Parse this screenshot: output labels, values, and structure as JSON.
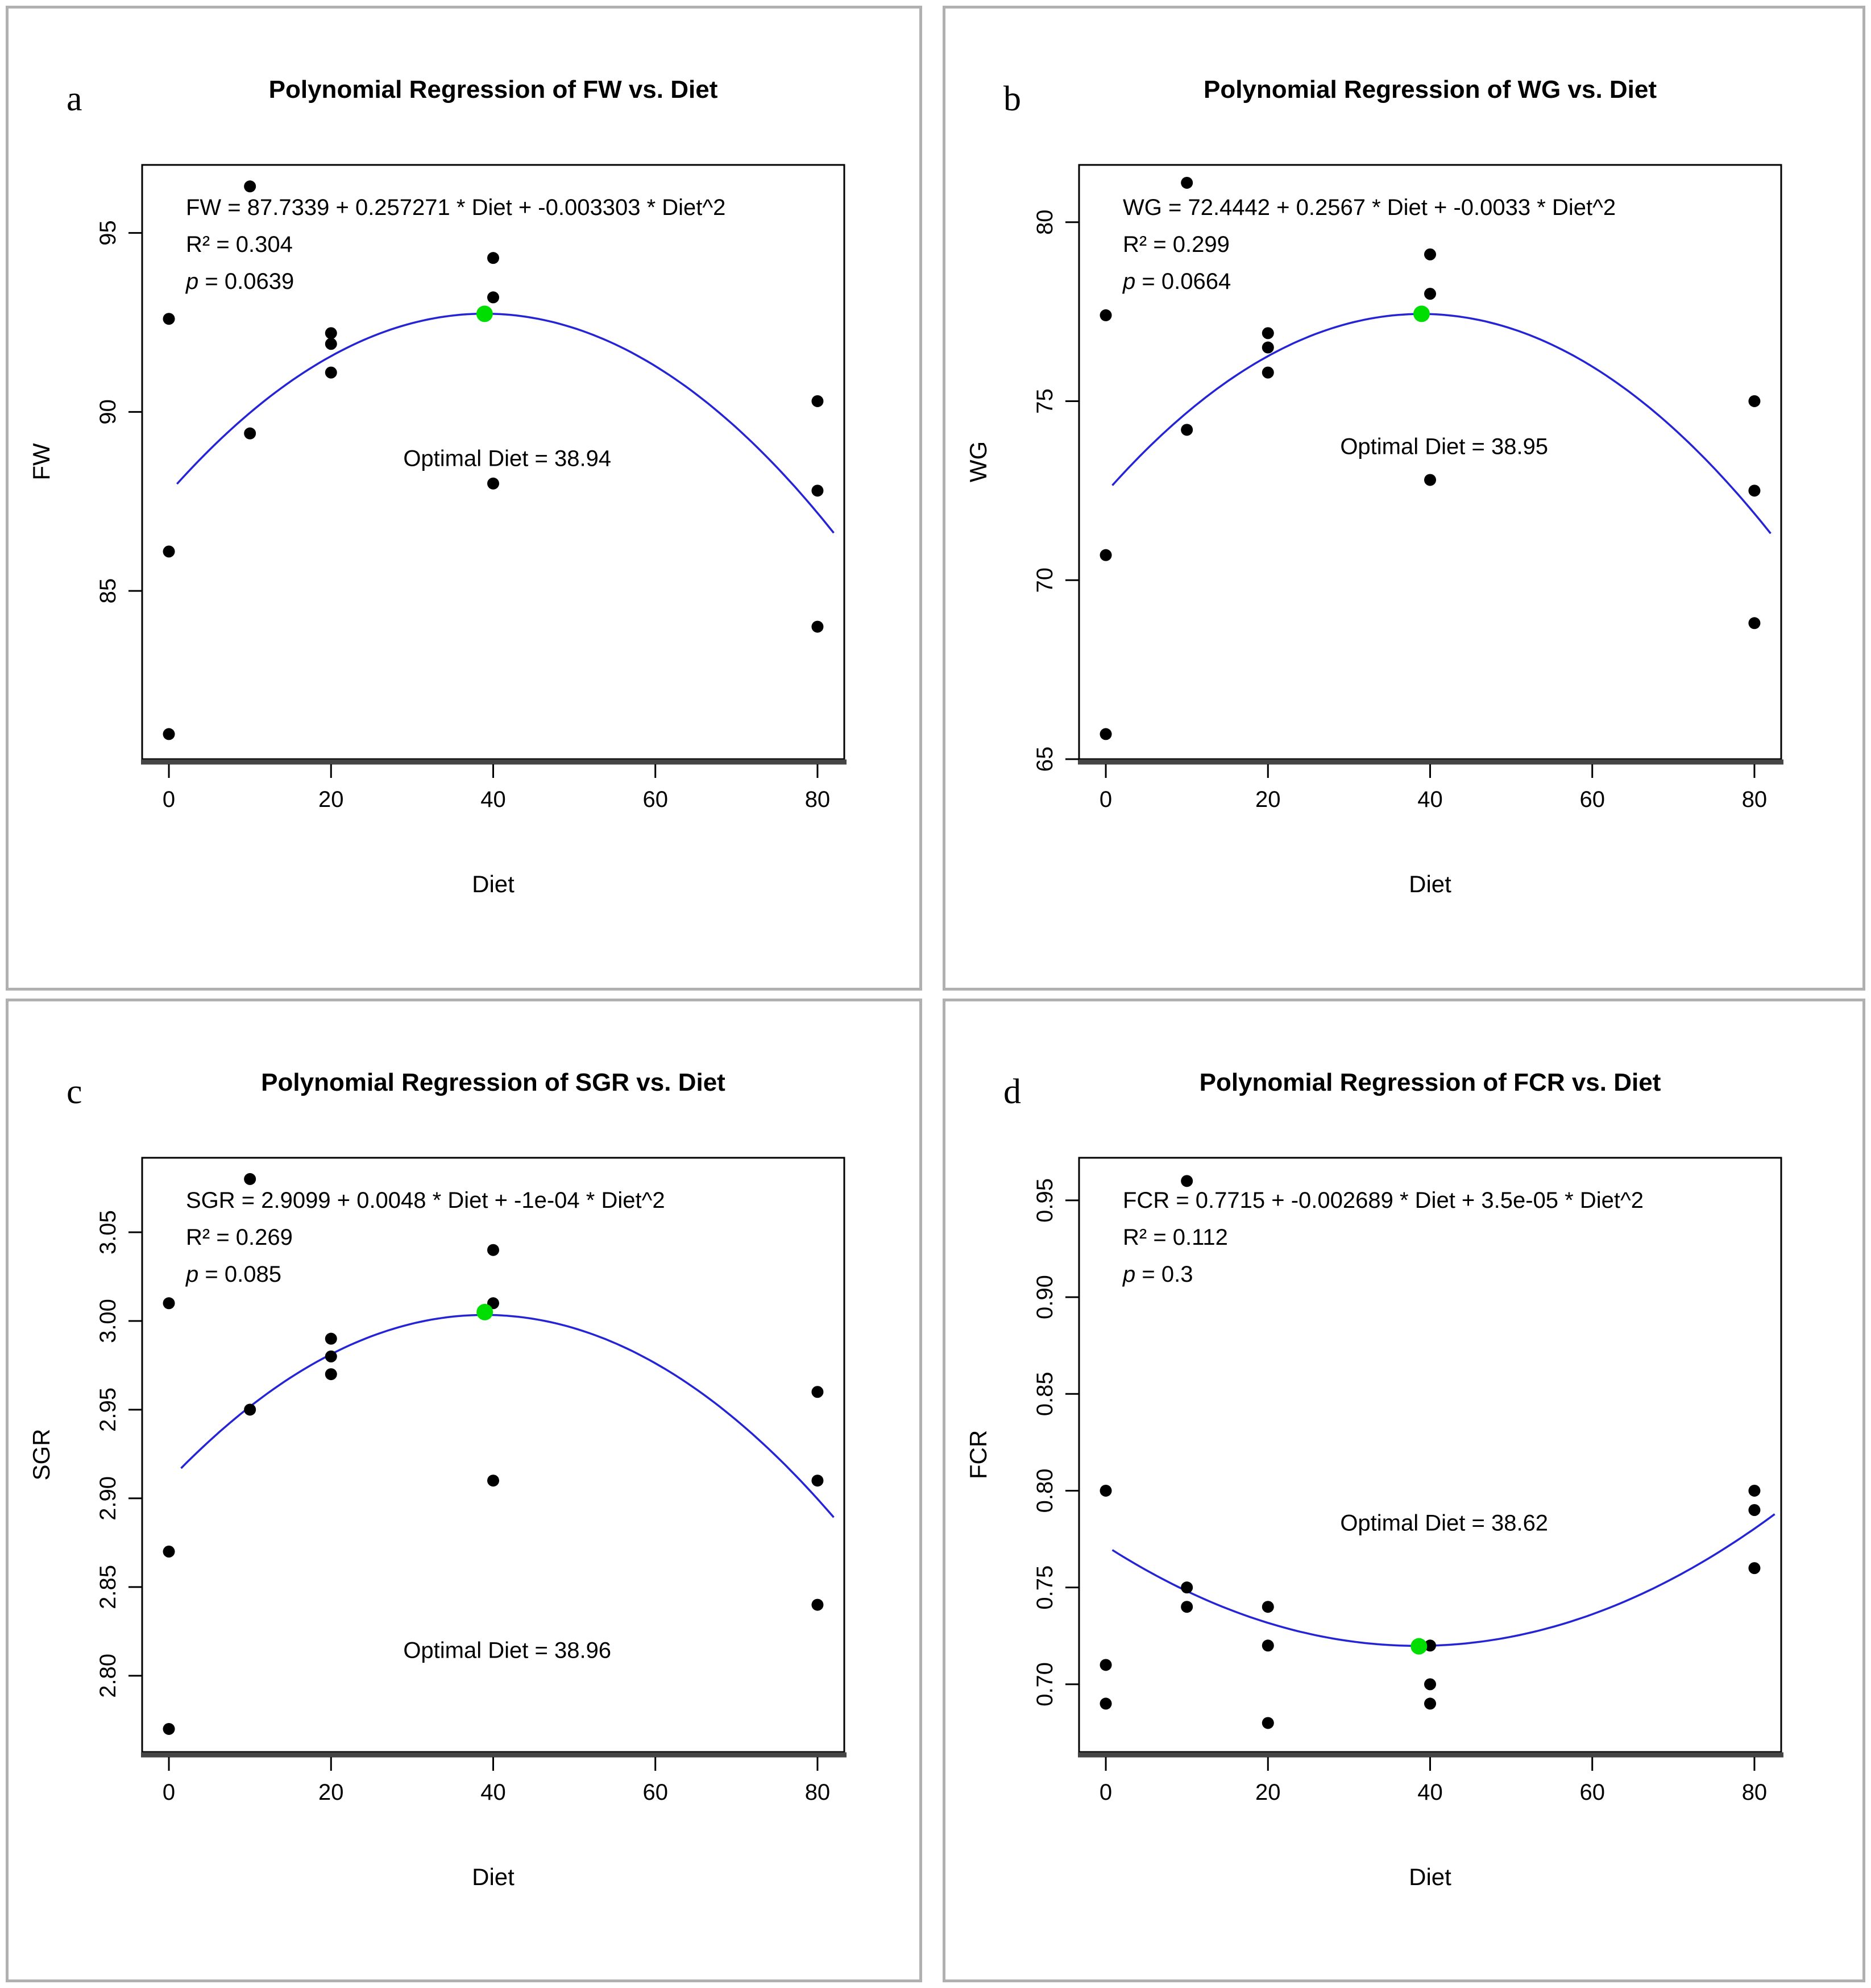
{
  "page": {
    "background": "#ffffff",
    "panel_border": "#b0b0b0"
  },
  "colors": {
    "curve": "#2424d6",
    "point": "#000000",
    "optimum": "#00dd00",
    "axis": "#000000",
    "axis_shadow": "#454545"
  },
  "chart_data": [
    {
      "type": "scatter",
      "letter": "a",
      "title": "Polynomial Regression of FW vs. Diet",
      "equation": "FW = 87.7339 + 0.257271 * Diet + -0.003303 * Diet^2",
      "r2": "R² = 0.304",
      "p_label": "p",
      "p_value": "= 0.0639",
      "optimal_label": "Optimal Diet = 38.94",
      "xlabel": "Diet",
      "ylabel": "FW",
      "xticks": [
        0,
        20,
        40,
        60,
        80
      ],
      "xtick_labels": [
        "0",
        "20",
        "40",
        "60",
        "80"
      ],
      "yticks": [
        85,
        90,
        95
      ],
      "ytick_labels": [
        "85",
        "90",
        "95"
      ],
      "xlim": [
        -3.3,
        83.3
      ],
      "ylim": [
        80.3,
        96.9
      ],
      "grid": false,
      "points": [
        [
          0,
          92.6
        ],
        [
          0,
          86.1
        ],
        [
          0,
          81.0
        ],
        [
          10,
          96.3
        ],
        [
          10,
          89.4
        ],
        [
          20,
          92.2
        ],
        [
          20,
          91.9
        ],
        [
          20,
          91.1
        ],
        [
          40,
          94.3
        ],
        [
          40,
          93.2
        ],
        [
          40,
          88.0
        ],
        [
          80,
          90.3
        ],
        [
          80,
          87.8
        ],
        [
          80,
          84.0
        ]
      ],
      "optimum": [
        38.94,
        92.74
      ],
      "curve": {
        "b0": 87.7339,
        "b1": 0.257271,
        "b2": -0.003303,
        "x_range": [
          1.0,
          82.0
        ]
      },
      "optimal_pos": {
        "x": 0.52,
        "y": 0.495
      }
    },
    {
      "type": "scatter",
      "letter": "b",
      "title": "Polynomial Regression of WG vs. Diet",
      "equation": "WG = 72.4442 + 0.2567 * Diet + -0.0033 * Diet^2",
      "r2": "R² = 0.299",
      "p_label": "p",
      "p_value": "= 0.0664",
      "optimal_label": "Optimal Diet = 38.95",
      "xlabel": "Diet",
      "ylabel": "WG",
      "xticks": [
        0,
        20,
        40,
        60,
        80
      ],
      "xtick_labels": [
        "0",
        "20",
        "40",
        "60",
        "80"
      ],
      "yticks": [
        65,
        70,
        75,
        80
      ],
      "ytick_labels": [
        "65",
        "70",
        "75",
        "80"
      ],
      "xlim": [
        -3.3,
        83.3
      ],
      "ylim": [
        65.0,
        81.6
      ],
      "grid": false,
      "points": [
        [
          0,
          77.4
        ],
        [
          0,
          70.7
        ],
        [
          0,
          65.7
        ],
        [
          10,
          81.1
        ],
        [
          10,
          74.2
        ],
        [
          20,
          76.9
        ],
        [
          20,
          76.5
        ],
        [
          20,
          75.8
        ],
        [
          40,
          79.1
        ],
        [
          40,
          78.0
        ],
        [
          40,
          72.8
        ],
        [
          80,
          75.0
        ],
        [
          80,
          72.5
        ],
        [
          80,
          68.8
        ]
      ],
      "optimum": [
        38.95,
        77.44
      ],
      "curve": {
        "b0": 72.4442,
        "b1": 0.2567,
        "b2": -0.0033,
        "x_range": [
          0.8,
          82.0
        ]
      },
      "optimal_pos": {
        "x": 0.52,
        "y": 0.475
      }
    },
    {
      "type": "scatter",
      "letter": "c",
      "title": "Polynomial Regression of SGR vs. Diet",
      "equation": "SGR = 2.9099 + 0.0048 * Diet + -1e-04 * Diet^2",
      "r2": "R² = 0.269",
      "p_label": "p",
      "p_value": "= 0.085",
      "optimal_label": "Optimal Diet = 38.96",
      "xlabel": "Diet",
      "ylabel": "SGR",
      "xticks": [
        0,
        20,
        40,
        60,
        80
      ],
      "xtick_labels": [
        "0",
        "20",
        "40",
        "60",
        "80"
      ],
      "yticks": [
        2.8,
        2.85,
        2.9,
        2.95,
        3.0,
        3.05
      ],
      "ytick_labels": [
        "2.80",
        "2.85",
        "2.90",
        "2.95",
        "3.00",
        "3.05"
      ],
      "xlim": [
        -3.3,
        83.3
      ],
      "ylim": [
        2.757,
        3.092
      ],
      "grid": false,
      "points": [
        [
          0,
          3.01
        ],
        [
          0,
          2.87
        ],
        [
          0,
          2.77
        ],
        [
          10,
          3.08
        ],
        [
          10,
          2.95
        ],
        [
          20,
          2.99
        ],
        [
          20,
          2.98
        ],
        [
          20,
          2.97
        ],
        [
          40,
          3.04
        ],
        [
          40,
          3.01
        ],
        [
          40,
          2.91
        ],
        [
          80,
          2.96
        ],
        [
          80,
          2.91
        ],
        [
          80,
          2.84
        ]
      ],
      "optimum": [
        38.96,
        3.005
      ],
      "curve": {
        "b0": 2.9099,
        "b1": 0.0048,
        "b2": -6.16e-05,
        "x_range": [
          1.5,
          82.0
        ]
      },
      "optimal_pos": {
        "x": 0.52,
        "y": 0.83
      }
    },
    {
      "type": "scatter",
      "letter": "d",
      "title": "Polynomial Regression of FCR vs. Diet",
      "equation": "FCR = 0.7715 + -0.002689 * Diet + 3.5e-05 * Diet^2",
      "r2": "R² = 0.112",
      "p_label": "p",
      "p_value": "= 0.3",
      "optimal_label": "Optimal Diet = 38.62",
      "xlabel": "Diet",
      "ylabel": "FCR",
      "xticks": [
        0,
        20,
        40,
        60,
        80
      ],
      "xtick_labels": [
        "0",
        "20",
        "40",
        "60",
        "80"
      ],
      "yticks": [
        0.7,
        0.75,
        0.8,
        0.85,
        0.9,
        0.95
      ],
      "ytick_labels": [
        "0.70",
        "0.75",
        "0.80",
        "0.85",
        "0.90",
        "0.95"
      ],
      "xlim": [
        -3.3,
        83.3
      ],
      "ylim": [
        0.665,
        0.972
      ],
      "grid": false,
      "points": [
        [
          0,
          0.8
        ],
        [
          0,
          0.71
        ],
        [
          0,
          0.69
        ],
        [
          10,
          0.96
        ],
        [
          10,
          0.75
        ],
        [
          10,
          0.74
        ],
        [
          20,
          0.74
        ],
        [
          20,
          0.72
        ],
        [
          20,
          0.68
        ],
        [
          40,
          0.72
        ],
        [
          40,
          0.7
        ],
        [
          40,
          0.69
        ],
        [
          80,
          0.8
        ],
        [
          80,
          0.79
        ],
        [
          80,
          0.76
        ]
      ],
      "optimum": [
        38.62,
        0.7196
      ],
      "curve": {
        "b0": 0.7715,
        "b1": -0.002689,
        "b2": 3.5e-05,
        "x_range": [
          0.8,
          82.5
        ]
      },
      "optimal_pos": {
        "x": 0.52,
        "y": 0.615
      }
    }
  ]
}
